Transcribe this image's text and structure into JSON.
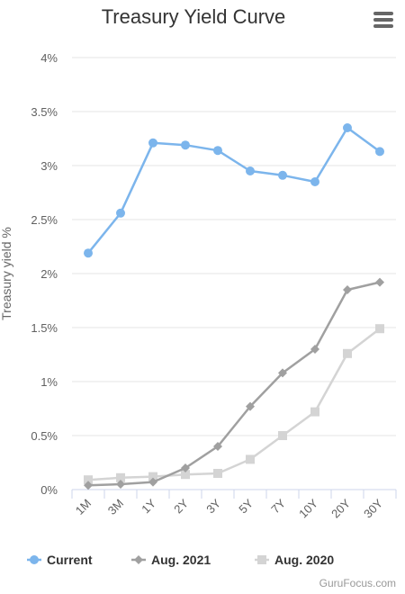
{
  "chart_data": {
    "type": "line",
    "title": "Treasury Yield Curve",
    "ylabel": "Treasury yield %",
    "xlabel": "",
    "categories": [
      "1M",
      "3M",
      "1Y",
      "2Y",
      "3Y",
      "5Y",
      "7Y",
      "10Y",
      "20Y",
      "30Y"
    ],
    "ylim": [
      0,
      4
    ],
    "yticks": [
      0,
      0.5,
      1,
      1.5,
      2,
      2.5,
      3,
      3.5,
      4
    ],
    "ytick_labels": [
      "0%",
      "0.5%",
      "1%",
      "1.5%",
      "2%",
      "2.5%",
      "3%",
      "3.5%",
      "4%"
    ],
    "grid": true,
    "legend_position": "bottom",
    "series": [
      {
        "name": "Current",
        "color": "#7cb5ec",
        "marker": "circle",
        "values": [
          2.19,
          2.56,
          3.21,
          3.19,
          3.14,
          2.95,
          2.91,
          2.85,
          3.35,
          3.13
        ]
      },
      {
        "name": "Aug. 2021",
        "color": "#a0a0a0",
        "marker": "diamond",
        "values": [
          0.04,
          0.05,
          0.07,
          0.2,
          0.4,
          0.77,
          1.08,
          1.3,
          1.85,
          1.92
        ]
      },
      {
        "name": "Aug. 2020",
        "color": "#d4d4d4",
        "marker": "square",
        "values": [
          0.09,
          0.11,
          0.12,
          0.14,
          0.15,
          0.28,
          0.5,
          0.72,
          1.26,
          1.49
        ]
      }
    ]
  },
  "menu": {
    "icon": "hamburger-menu-icon"
  },
  "credit": {
    "text": "GuruFocus.com"
  }
}
